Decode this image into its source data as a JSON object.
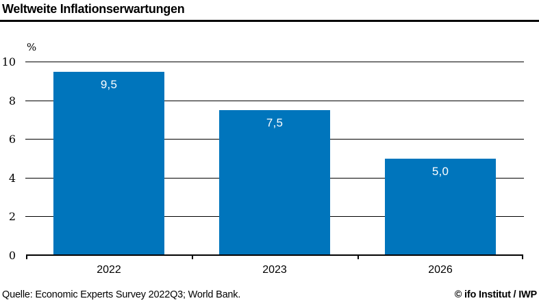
{
  "header": {
    "title": "Weltweite Inflationserwartungen"
  },
  "footer": {
    "source": "Quelle: Economic Experts Survey 2022Q3; World Bank.",
    "credit": "© ifo Institut / IWP"
  },
  "colors": {
    "bar": "#0075BC",
    "axis": "#000000",
    "bar_label_text": "#ffffff",
    "background": "#ffffff"
  },
  "chart_data": {
    "type": "bar",
    "title": "Weltweite Inflationserwartungen",
    "unit_label": "%",
    "categories": [
      "2022",
      "2023",
      "2026"
    ],
    "values": [
      9.5,
      7.5,
      5.0
    ],
    "value_labels": [
      "9,5",
      "7,5",
      "5,0"
    ],
    "xlabel": "",
    "ylabel": "%",
    "ylim": [
      0,
      10
    ],
    "yticks": [
      0,
      2,
      4,
      6,
      8,
      10
    ],
    "grid": "horizontal",
    "legend": "none",
    "bar_color": "#0075BC"
  }
}
